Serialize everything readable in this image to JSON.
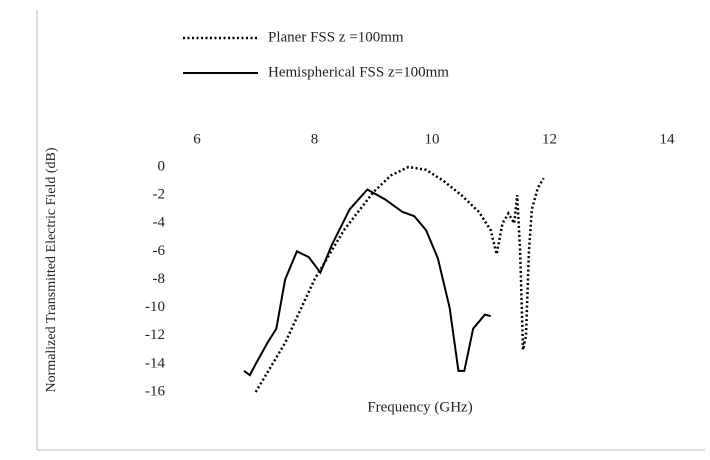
{
  "chart_data": {
    "type": "line",
    "xlabel": "Frequency (GHz)",
    "ylabel": "Normalized Transmitted Electric Field (dB)",
    "xlim": [
      6,
      14
    ],
    "xticks": [
      6,
      8,
      10,
      12,
      14
    ],
    "ylim": [
      -16,
      0
    ],
    "yticks": [
      0,
      -2,
      -4,
      -6,
      -8,
      -10,
      -12,
      -14,
      -16
    ],
    "x_axis_position": "top",
    "grid": false,
    "series": [
      {
        "name": "Planer FSS z =100mm",
        "color": "#000000",
        "style": "dotted",
        "x": [
          7.0,
          7.5,
          8.0,
          8.5,
          9.0,
          9.3,
          9.6,
          9.9,
          10.2,
          10.5,
          10.8,
          11.0,
          11.1,
          11.2,
          11.3,
          11.4,
          11.45,
          11.5,
          11.55,
          11.6,
          11.65,
          11.7,
          11.8,
          11.9
        ],
        "values": [
          -16,
          -12.5,
          -8,
          -4.5,
          -1.8,
          -0.6,
          0,
          -0.2,
          -1,
          -2,
          -3.2,
          -4.5,
          -6.2,
          -4,
          -3.3,
          -4,
          -2,
          -6,
          -13,
          -12,
          -6,
          -3,
          -1.5,
          -0.8
        ]
      },
      {
        "name": "Hemispherical FSS z=100mm",
        "color": "#000000",
        "style": "solid",
        "x": [
          6.8,
          6.9,
          7.0,
          7.2,
          7.35,
          7.5,
          7.7,
          7.9,
          8.1,
          8.3,
          8.6,
          8.9,
          9.2,
          9.5,
          9.7,
          9.9,
          10.1,
          10.3,
          10.45,
          10.55,
          10.7,
          10.9,
          11.0
        ],
        "values": [
          -14.5,
          -14.8,
          -14,
          -12.5,
          -11.5,
          -8,
          -6,
          -6.4,
          -7.5,
          -5.5,
          -3,
          -1.6,
          -2.3,
          -3.2,
          -3.5,
          -4.5,
          -6.5,
          -10,
          -14.5,
          -14.5,
          -11.5,
          -10.5,
          -10.6
        ]
      }
    ]
  }
}
